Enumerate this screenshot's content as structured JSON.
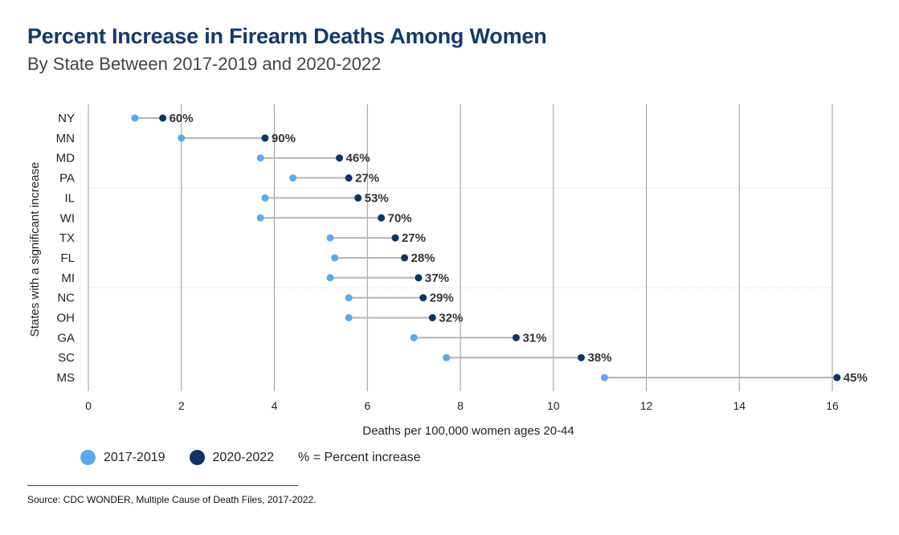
{
  "title": "Percent Increase in Firearm Deaths Among Women",
  "subtitle": "By State Between 2017-2019 and 2020-2022",
  "legend": {
    "series_a": "2017-2019",
    "series_b": "2020-2022",
    "note": "% = Percent increase"
  },
  "source": "Source: CDC WONDER, Multiple Cause of Death Files, 2017-2022.",
  "colors": {
    "series_a": "#5ba8ee",
    "series_b": "#0d3563",
    "connector": "#b3b3b3",
    "grid": "#9a9a9a",
    "title": "#123a6b"
  },
  "chart_data": {
    "type": "dumbbell",
    "xlabel": "Deaths per 100,000 women ages 20-44",
    "ylabel": "States with a significant increase",
    "xlim": [
      0,
      16
    ],
    "xticks": [
      0,
      2,
      4,
      6,
      8,
      10,
      12,
      14,
      16
    ],
    "grid": "vertical",
    "legend_position": "bottom-left",
    "categories": [
      "NY",
      "MN",
      "MD",
      "PA",
      "IL",
      "WI",
      "TX",
      "FL",
      "MI",
      "NC",
      "OH",
      "GA",
      "SC",
      "MS"
    ],
    "series": [
      {
        "name": "2017-2019",
        "values": [
          1.0,
          2.0,
          3.7,
          4.4,
          3.8,
          3.7,
          5.2,
          5.3,
          5.2,
          5.6,
          5.6,
          7.0,
          7.7,
          11.1
        ]
      },
      {
        "name": "2020-2022",
        "values": [
          1.6,
          3.8,
          5.4,
          5.6,
          5.8,
          6.3,
          6.6,
          6.8,
          7.1,
          7.2,
          7.4,
          9.2,
          10.6,
          16.1
        ]
      }
    ],
    "labels": [
      "60%",
      "90%",
      "46%",
      "27%",
      "53%",
      "70%",
      "27%",
      "28%",
      "37%",
      "29%",
      "32%",
      "31%",
      "38%",
      "45%"
    ]
  }
}
